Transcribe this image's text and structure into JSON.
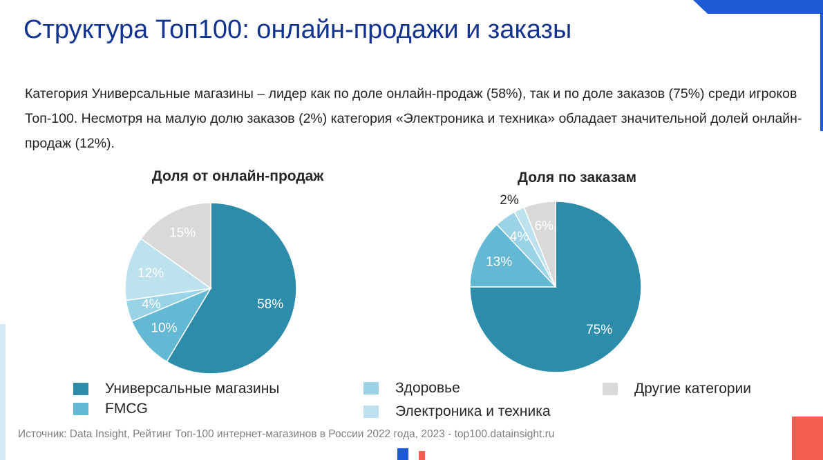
{
  "title": "Структура Топ100: онлайн-продажи и заказы",
  "description": "Категория Универсальные магазины – лидер как по доле онлайн-продаж (58%), так и по доле заказов (75%) среди игроков Топ-100. Несмотря на малую долю заказов (2%) категория «Электроника и техника» обладает значительной долей онлайн-продаж (12%).",
  "source": "Источник: Data Insight, Рейтинг Топ-100 интернет-магазинов в России 2022 года, 2023 - top100.datainsight.ru",
  "colors": {
    "universal": "#2e8cab",
    "fmcg": "#63b8d4",
    "health": "#9ad3e6",
    "electronics": "#bde2ee",
    "other": "#d9d9d9",
    "title": "#12338f",
    "accent_blue": "#1f5ad6",
    "accent_light": "#d3eaf4",
    "accent_red": "#f55f52"
  },
  "legend": [
    {
      "key": "universal",
      "label": "Универсальные магазины"
    },
    {
      "key": "fmcg",
      "label": "FMCG"
    },
    {
      "key": "health",
      "label": "Здоровье"
    },
    {
      "key": "electronics",
      "label": "Электроника и техника"
    },
    {
      "key": "other",
      "label": "Другие категории"
    }
  ],
  "chart_data": [
    {
      "type": "pie",
      "title": "Доля от онлайн-продаж",
      "slices": [
        {
          "key": "universal",
          "label": "Универсальные магазины",
          "value": 58,
          "data_label": "58%"
        },
        {
          "key": "fmcg",
          "label": "FMCG",
          "value": 10,
          "data_label": "10%"
        },
        {
          "key": "health",
          "label": "Здоровье",
          "value": 4,
          "data_label": "4%"
        },
        {
          "key": "electronics",
          "label": "Электроника и техника",
          "value": 12,
          "data_label": "12%"
        },
        {
          "key": "other",
          "label": "Другие категории",
          "value": 15,
          "data_label": "15%"
        }
      ]
    },
    {
      "type": "pie",
      "title": "Доля по заказам",
      "slices": [
        {
          "key": "universal",
          "label": "Универсальные магазины",
          "value": 75,
          "data_label": "75%"
        },
        {
          "key": "fmcg",
          "label": "FMCG",
          "value": 13,
          "data_label": "13%"
        },
        {
          "key": "health",
          "label": "Здоровье",
          "value": 4,
          "data_label": "4%"
        },
        {
          "key": "electronics",
          "label": "Электроника и техника",
          "value": 2,
          "data_label": "2%"
        },
        {
          "key": "other",
          "label": "Другие категории",
          "value": 6,
          "data_label": "6%"
        }
      ]
    }
  ]
}
